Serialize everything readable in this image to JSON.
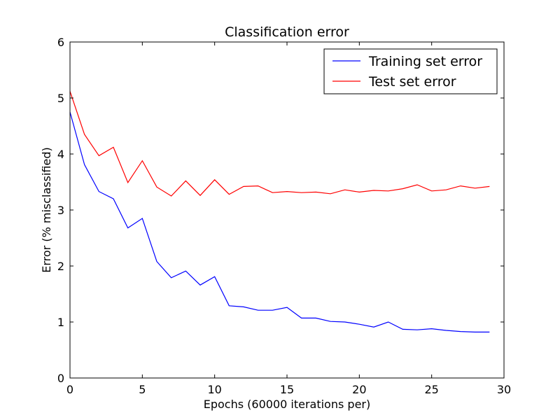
{
  "chart_data": {
    "type": "line",
    "title": "Classification error",
    "xlabel": "Epochs (60000 iterations per)",
    "ylabel": "Error (% misclassified)",
    "xlim": [
      0,
      30
    ],
    "ylim": [
      0,
      6
    ],
    "xticks": [
      "0",
      "5",
      "10",
      "15",
      "20",
      "25",
      "30"
    ],
    "yticks": [
      "0",
      "1",
      "2",
      "3",
      "4",
      "5",
      "6"
    ],
    "grid": false,
    "legend_position": "top-right",
    "x": [
      0,
      1,
      2,
      3,
      4,
      5,
      6,
      7,
      8,
      9,
      10,
      11,
      12,
      13,
      14,
      15,
      16,
      17,
      18,
      19,
      20,
      21,
      22,
      23,
      24,
      25,
      26,
      27,
      28,
      29
    ],
    "series": [
      {
        "name": "Training set error",
        "color": "#0000ff",
        "values": [
          4.75,
          3.81,
          3.33,
          3.2,
          2.68,
          2.85,
          2.08,
          1.79,
          1.91,
          1.66,
          1.81,
          1.29,
          1.27,
          1.21,
          1.21,
          1.26,
          1.07,
          1.07,
          1.01,
          1.0,
          0.96,
          0.91,
          1.0,
          0.87,
          0.86,
          0.88,
          0.85,
          0.83,
          0.82,
          0.82
        ]
      },
      {
        "name": "Test set error",
        "color": "#ff0000",
        "values": [
          5.12,
          4.35,
          3.97,
          4.12,
          3.49,
          3.88,
          3.41,
          3.25,
          3.52,
          3.26,
          3.54,
          3.28,
          3.42,
          3.43,
          3.31,
          3.33,
          3.31,
          3.32,
          3.29,
          3.36,
          3.32,
          3.35,
          3.34,
          3.38,
          3.45,
          3.34,
          3.36,
          3.43,
          3.39,
          3.42
        ]
      }
    ]
  }
}
